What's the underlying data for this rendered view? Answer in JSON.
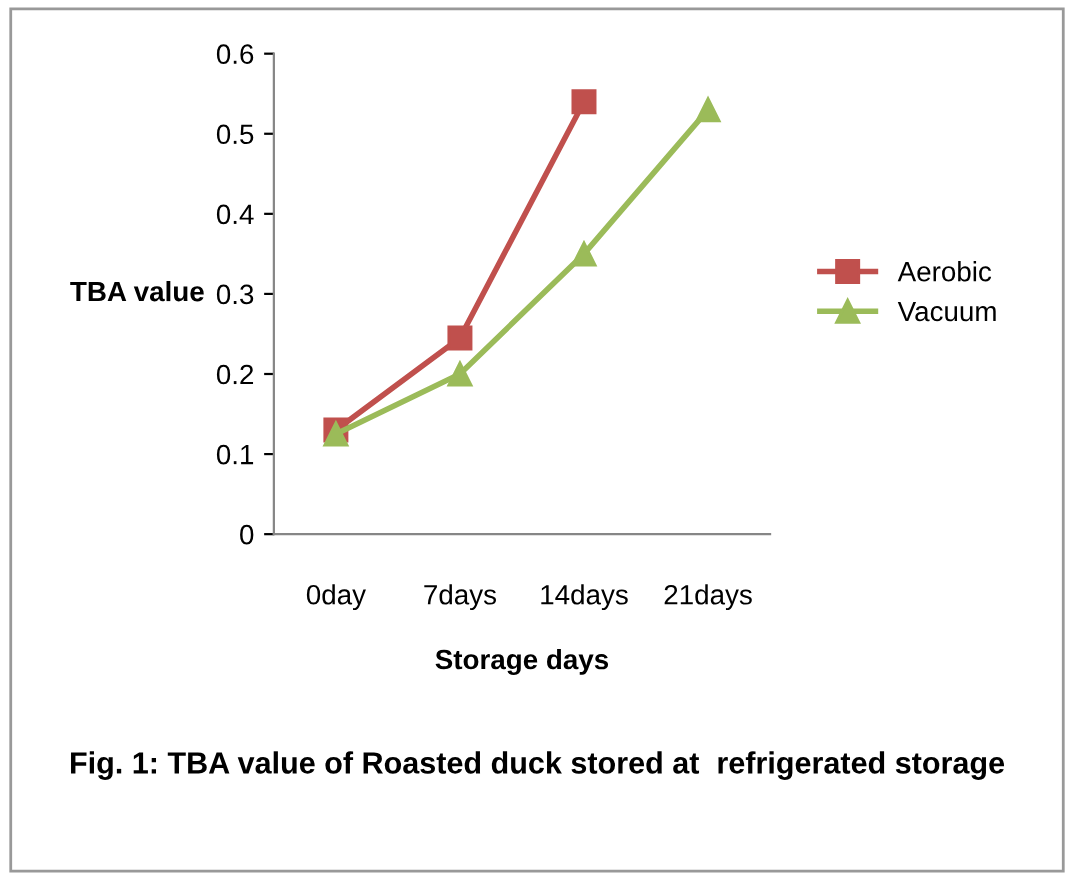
{
  "chart_data": {
    "type": "line",
    "ylabel": "TBA value",
    "xlabel": "Storage days",
    "categories": [
      "0day",
      "7days",
      "14days",
      "21days"
    ],
    "series": [
      {
        "name": "Aerobic",
        "color": "#c0504d",
        "marker": "square",
        "values": [
          0.13,
          0.245,
          0.54,
          null
        ]
      },
      {
        "name": "Vacuum",
        "color": "#9bbb59",
        "marker": "triangle",
        "values": [
          0.125,
          0.2,
          0.35,
          0.53
        ]
      }
    ],
    "ylim": [
      0,
      0.6
    ],
    "yticks": [
      0,
      0.1,
      0.2,
      0.3,
      0.4,
      0.5,
      0.6
    ],
    "grid": false,
    "legend": "right",
    "annotations": [
      "Fig. 1: TBA value of Roasted duck stored at  refrigerated storage"
    ]
  }
}
